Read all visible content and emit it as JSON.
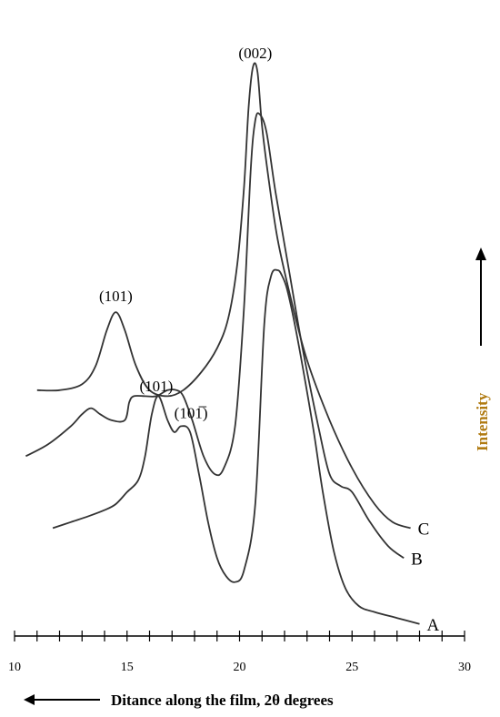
{
  "chart_data": {
    "type": "line",
    "xlabel": "Ditance along the film, 2θ degrees",
    "ylabel": "Intensity",
    "xlim": [
      10,
      30
    ],
    "xticks": [
      "10",
      "15",
      "20",
      "25",
      "30"
    ],
    "grid": false,
    "colors": {
      "curve": "#333333",
      "ylabel": "#b07a10",
      "axis": "#000000"
    },
    "annotations": [
      {
        "text": "(002)",
        "x": 20.7
      },
      {
        "text": "(101)",
        "x": 14.5
      },
      {
        "text": "(101)",
        "x": 16.3
      },
      {
        "text": "(101̅)",
        "x": 17.6
      }
    ],
    "series": [
      {
        "name": "C",
        "x": [
          11.0,
          12.0,
          13.0,
          13.6,
          14.1,
          14.5,
          14.9,
          15.4,
          16.0,
          16.8,
          17.5,
          18.3,
          19.0,
          19.5,
          19.9,
          20.2,
          20.4,
          20.6,
          20.8,
          21.0,
          21.3,
          21.7,
          22.3,
          23.0,
          24.0,
          25.0,
          26.0,
          26.8,
          27.6
        ],
        "y": [
          0.41,
          0.41,
          0.42,
          0.45,
          0.51,
          0.54,
          0.51,
          0.45,
          0.41,
          0.4,
          0.41,
          0.44,
          0.48,
          0.53,
          0.62,
          0.75,
          0.88,
          0.95,
          0.94,
          0.85,
          0.76,
          0.66,
          0.56,
          0.46,
          0.36,
          0.28,
          0.22,
          0.19,
          0.18
        ]
      },
      {
        "name": "B",
        "x": [
          10.5,
          11.5,
          12.5,
          13.0,
          13.4,
          13.8,
          14.3,
          14.9,
          15.1,
          15.3,
          15.8,
          16.3,
          16.8,
          17.2,
          17.5,
          17.9,
          18.4,
          18.9,
          19.3,
          19.8,
          20.2,
          20.5,
          20.7,
          20.9,
          21.2,
          21.6,
          22.2,
          22.8,
          23.5,
          24.0,
          24.5,
          25.0,
          25.8,
          26.6,
          27.3
        ],
        "y": [
          0.3,
          0.32,
          0.35,
          0.37,
          0.38,
          0.37,
          0.36,
          0.36,
          0.39,
          0.4,
          0.4,
          0.4,
          0.41,
          0.41,
          0.4,
          0.36,
          0.3,
          0.27,
          0.28,
          0.35,
          0.55,
          0.78,
          0.86,
          0.87,
          0.84,
          0.74,
          0.61,
          0.48,
          0.35,
          0.27,
          0.25,
          0.24,
          0.19,
          0.15,
          0.13
        ]
      },
      {
        "name": "A",
        "x": [
          11.7,
          12.5,
          13.3,
          14.0,
          14.5,
          15.0,
          15.5,
          15.8,
          16.1,
          16.4,
          16.8,
          17.1,
          17.4,
          17.8,
          18.2,
          18.6,
          19.0,
          19.4,
          19.8,
          20.2,
          20.7,
          21.1,
          21.4,
          21.7,
          21.9,
          22.1,
          22.4,
          22.8,
          23.3,
          23.7,
          24.2,
          24.7,
          25.3,
          26.0,
          27.0,
          28.0
        ],
        "y": [
          0.18,
          0.19,
          0.2,
          0.21,
          0.22,
          0.24,
          0.26,
          0.3,
          0.37,
          0.4,
          0.36,
          0.34,
          0.35,
          0.34,
          0.27,
          0.19,
          0.13,
          0.1,
          0.09,
          0.11,
          0.22,
          0.52,
          0.6,
          0.61,
          0.6,
          0.58,
          0.53,
          0.45,
          0.34,
          0.24,
          0.14,
          0.08,
          0.05,
          0.04,
          0.03,
          0.02
        ]
      }
    ]
  }
}
